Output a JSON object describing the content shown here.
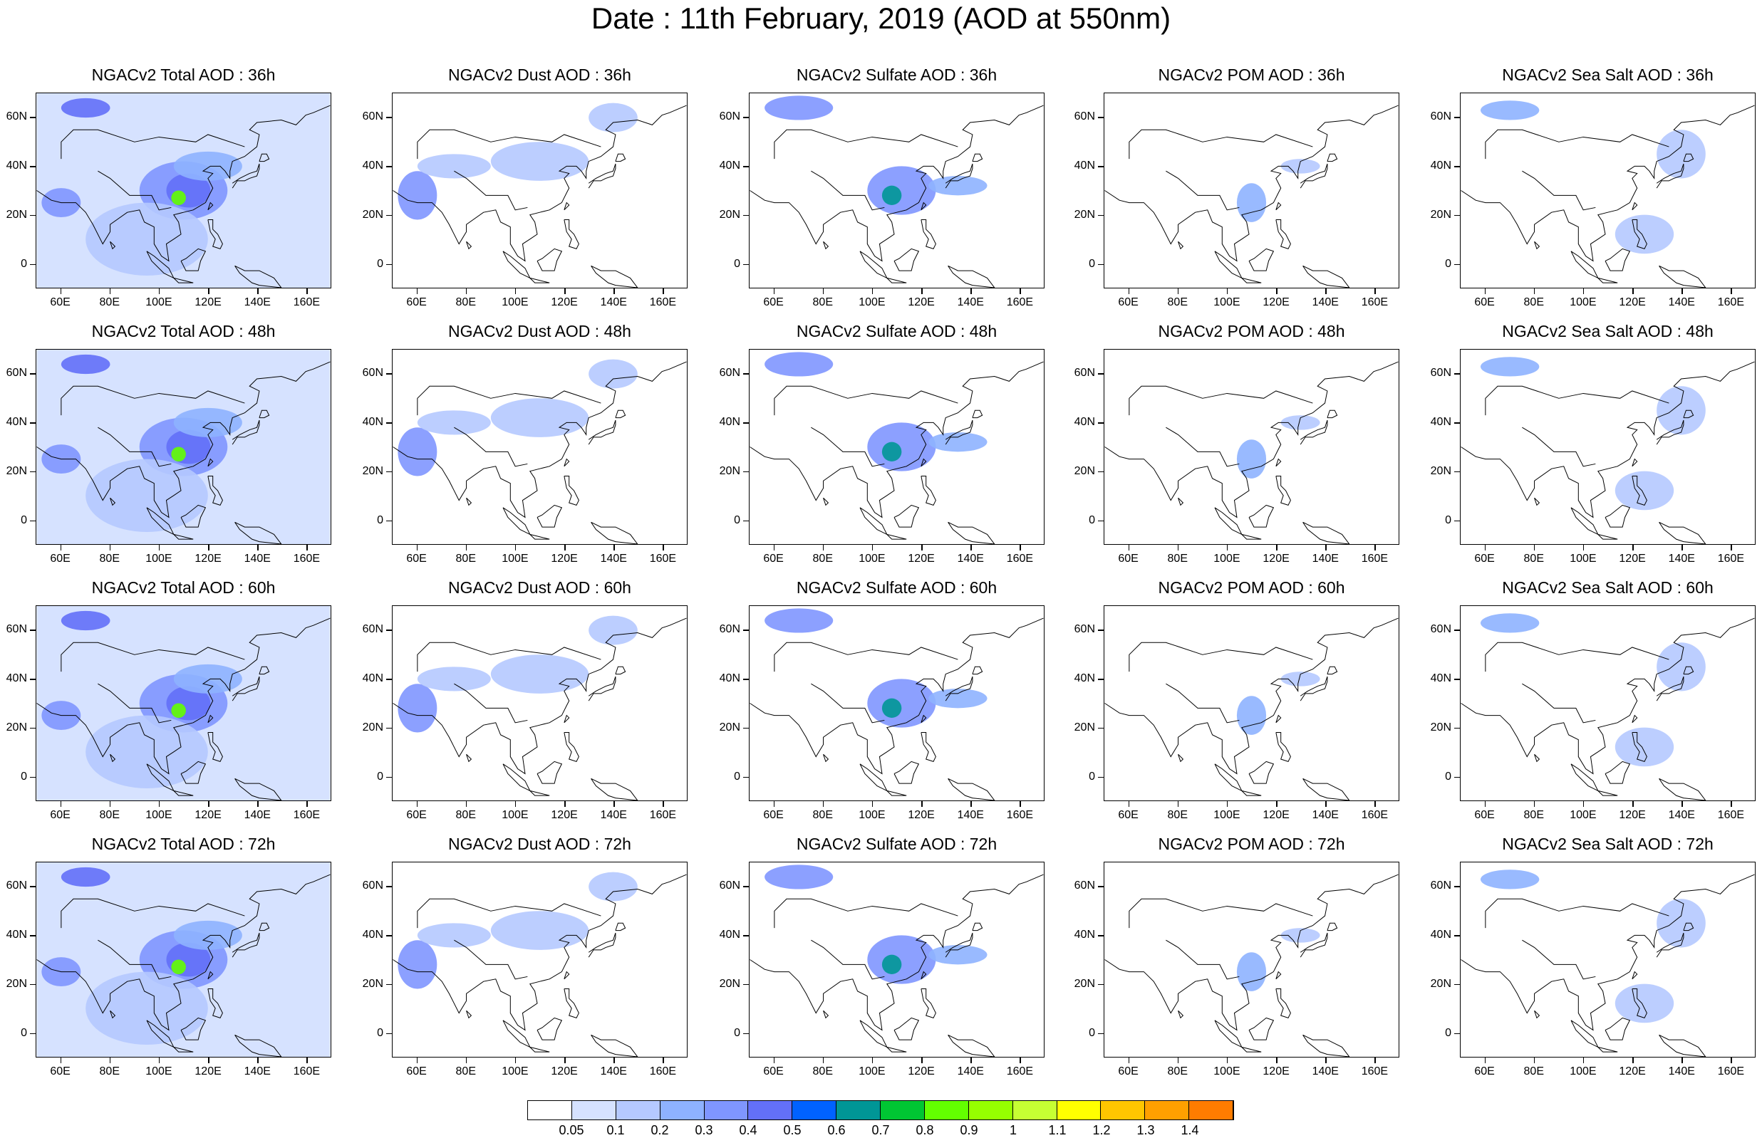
{
  "title": "Date : 11th February, 2019 (AOD at 550nm)",
  "panels": [
    [
      "NGACv2 Total AOD : 36h",
      "NGACv2 Dust AOD : 36h",
      "NGACv2 Sulfate AOD : 36h",
      "NGACv2 POM AOD : 36h",
      "NGACv2 Sea Salt AOD : 36h"
    ],
    [
      "NGACv2 Total AOD : 48h",
      "NGACv2 Dust AOD : 48h",
      "NGACv2 Sulfate AOD : 48h",
      "NGACv2 POM AOD : 48h",
      "NGACv2 Sea Salt AOD : 48h"
    ],
    [
      "NGACv2 Total AOD : 60h",
      "NGACv2 Dust AOD : 60h",
      "NGACv2 Sulfate AOD : 60h",
      "NGACv2 POM AOD : 60h",
      "NGACv2 Sea Salt AOD : 60h"
    ],
    [
      "NGACv2 Total AOD : 72h",
      "NGACv2 Dust AOD : 72h",
      "NGACv2 Sulfate AOD : 72h",
      "NGACv2 POM AOD : 72h",
      "NGACv2 Sea Salt  AOD : 72h"
    ]
  ],
  "map": {
    "lon_range": [
      50,
      170
    ],
    "lat_range": [
      -10,
      70
    ],
    "lon_ticks": [
      "60E",
      "80E",
      "100E",
      "120E",
      "140E",
      "160E"
    ],
    "lon_tick_values": [
      60,
      80,
      100,
      120,
      140,
      160
    ],
    "lat_ticks": [
      "60N",
      "40N",
      "20N",
      "0"
    ],
    "lat_tick_values": [
      60,
      40,
      20,
      0
    ]
  },
  "legend": {
    "labels": [
      "0.05",
      "0.1",
      "0.2",
      "0.3",
      "0.4",
      "0.5",
      "0.6",
      "0.7",
      "0.8",
      "0.9",
      "1",
      "1.1",
      "1.2",
      "1.3",
      "1.4"
    ],
    "colors": [
      "#ffffff",
      "#d6e2ff",
      "#b5c9ff",
      "#8eb2ff",
      "#7f96ff",
      "#6370f8",
      "#0062ff",
      "#009696",
      "#00c633",
      "#63ff00",
      "#96ff00",
      "#c6ff33",
      "#ffff00",
      "#ffc600",
      "#ffa000",
      "#ff7c00",
      "#ff1900"
    ]
  }
}
